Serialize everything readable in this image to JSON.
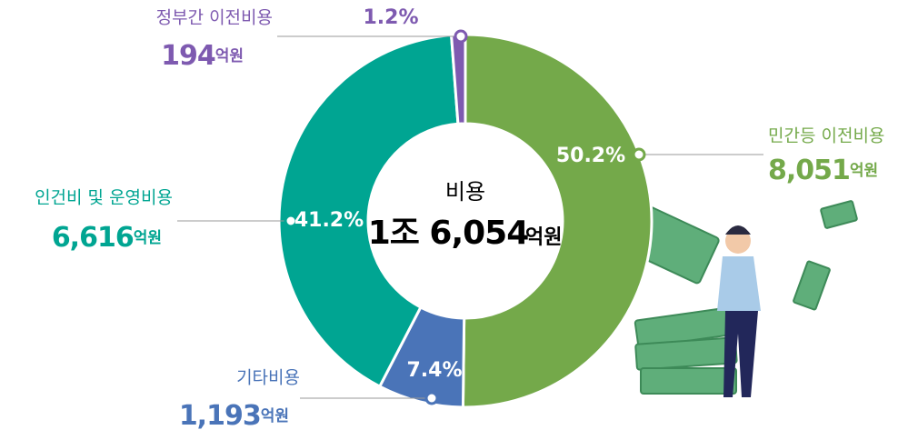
{
  "chart_data": {
    "type": "donut",
    "center_title": "비용",
    "total": "1조 6,054",
    "unit": "억원",
    "categories": [
      "민간등 이전비용",
      "기타비용",
      "인건비 및 운영비용",
      "정부간 이전비용"
    ],
    "values": [
      50.2,
      7.4,
      41.2,
      1.2
    ],
    "value_labels": [
      "50.2%",
      "7.4%",
      "41.2%",
      "1.2%"
    ],
    "amounts": [
      8051,
      1193,
      6616,
      194
    ],
    "amount_labels": [
      "8,051",
      "1,193",
      "6,616",
      "194"
    ],
    "colors": [
      "#74a94a",
      "#4a74b8",
      "#00a592",
      "#7e5ab0"
    ]
  }
}
